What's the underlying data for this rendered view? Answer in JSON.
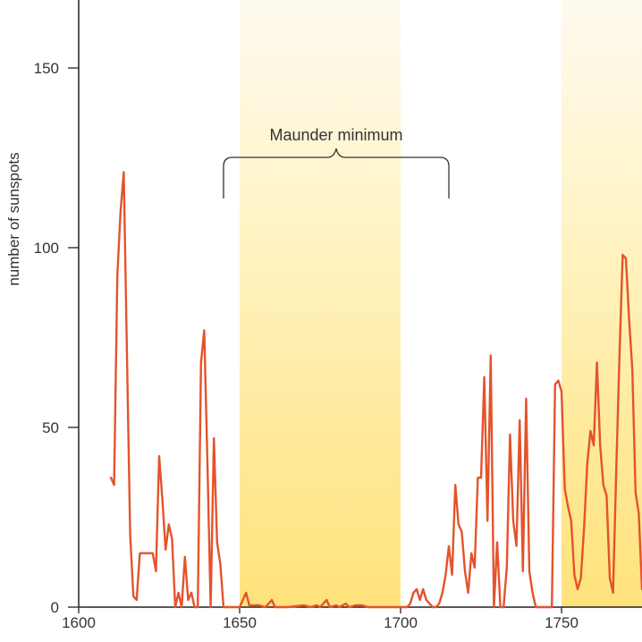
{
  "chart_data": {
    "type": "line",
    "title": "",
    "xlabel": "",
    "ylabel": "number of sunspots",
    "xlim": [
      1600,
      1775
    ],
    "ylim": [
      0,
      170
    ],
    "x_ticks": [
      "1600",
      "1650",
      "1700",
      "1750"
    ],
    "y_ticks": [
      "0",
      "50",
      "100",
      "150"
    ],
    "grid": false,
    "legend": "none",
    "annotation": {
      "text": "Maunder minimum",
      "from_year": 1645,
      "to_year": 1715
    },
    "shaded_bands": [
      {
        "from_year": 1650,
        "to_year": 1700
      },
      {
        "from_year": 1750,
        "to_year": 1775
      }
    ],
    "colors": {
      "line": "#e4532b",
      "band_top": "#fffaf0",
      "band_bottom": "#ffe27a",
      "axis": "#222222",
      "text": "#333333"
    },
    "series": [
      {
        "points": [
          [
            1610,
            36
          ],
          [
            1611,
            34
          ],
          [
            1612,
            92
          ],
          [
            1613,
            110
          ],
          [
            1614,
            121
          ],
          [
            1615,
            70
          ],
          [
            1616,
            20
          ],
          [
            1617,
            3
          ],
          [
            1618,
            2
          ],
          [
            1619,
            15
          ],
          [
            1620,
            15
          ],
          [
            1621,
            15
          ],
          [
            1622,
            15
          ],
          [
            1623,
            15
          ],
          [
            1624,
            10
          ],
          [
            1625,
            42
          ],
          [
            1626,
            30
          ],
          [
            1627,
            16
          ],
          [
            1628,
            23
          ],
          [
            1629,
            19
          ],
          [
            1630,
            0
          ],
          [
            1631,
            4
          ],
          [
            1632,
            0
          ],
          [
            1633,
            14
          ],
          [
            1634,
            2
          ],
          [
            1635,
            4
          ],
          [
            1636,
            0
          ],
          [
            1637,
            0
          ],
          [
            1638,
            68
          ],
          [
            1639,
            77
          ],
          [
            1640,
            40
          ],
          [
            1641,
            0
          ],
          [
            1642,
            47
          ],
          [
            1643,
            18
          ],
          [
            1644,
            12
          ],
          [
            1645,
            0
          ],
          [
            1650,
            0
          ],
          [
            1652,
            4
          ],
          [
            1653,
            0.5
          ],
          [
            1656,
            0.5
          ],
          [
            1658,
            0
          ],
          [
            1660,
            2
          ],
          [
            1661,
            0
          ],
          [
            1665,
            0
          ],
          [
            1670,
            0.5
          ],
          [
            1672,
            0
          ],
          [
            1674,
            0.5
          ],
          [
            1675,
            0
          ],
          [
            1677,
            2
          ],
          [
            1678,
            0
          ],
          [
            1680,
            0.5
          ],
          [
            1681,
            0
          ],
          [
            1683,
            1
          ],
          [
            1684,
            0
          ],
          [
            1686,
            0.5
          ],
          [
            1688,
            0.5
          ],
          [
            1690,
            0
          ],
          [
            1695,
            0
          ],
          [
            1700,
            0
          ],
          [
            1702,
            0
          ],
          [
            1703,
            1
          ],
          [
            1704,
            4
          ],
          [
            1705,
            5
          ],
          [
            1706,
            2
          ],
          [
            1707,
            5
          ],
          [
            1708,
            2
          ],
          [
            1709,
            1
          ],
          [
            1710,
            0
          ],
          [
            1711,
            0
          ],
          [
            1712,
            1
          ],
          [
            1713,
            4
          ],
          [
            1714,
            9
          ],
          [
            1715,
            17
          ],
          [
            1716,
            9
          ],
          [
            1717,
            34
          ],
          [
            1718,
            23
          ],
          [
            1719,
            21
          ],
          [
            1720,
            10
          ],
          [
            1721,
            4
          ],
          [
            1722,
            15
          ],
          [
            1723,
            11
          ],
          [
            1724,
            36
          ],
          [
            1725,
            36
          ],
          [
            1726,
            64
          ],
          [
            1727,
            24
          ],
          [
            1728,
            70
          ],
          [
            1729,
            0
          ],
          [
            1730,
            18
          ],
          [
            1731,
            0
          ],
          [
            1732,
            0
          ],
          [
            1733,
            11
          ],
          [
            1734,
            48
          ],
          [
            1735,
            24
          ],
          [
            1736,
            17
          ],
          [
            1737,
            52
          ],
          [
            1738,
            10
          ],
          [
            1739,
            58
          ],
          [
            1740,
            10
          ],
          [
            1741,
            4
          ],
          [
            1742,
            0
          ],
          [
            1743,
            0
          ],
          [
            1744,
            0
          ],
          [
            1745,
            0
          ],
          [
            1746,
            0
          ],
          [
            1747,
            0
          ],
          [
            1748,
            62
          ],
          [
            1749,
            63
          ],
          [
            1750,
            60
          ],
          [
            1751,
            33
          ],
          [
            1752,
            28
          ],
          [
            1753,
            24
          ],
          [
            1754,
            9
          ],
          [
            1755,
            5
          ],
          [
            1756,
            8
          ],
          [
            1757,
            22
          ],
          [
            1758,
            40
          ],
          [
            1759,
            49
          ],
          [
            1760,
            45
          ],
          [
            1761,
            68
          ],
          [
            1762,
            45
          ],
          [
            1763,
            34
          ],
          [
            1764,
            31
          ],
          [
            1765,
            8
          ],
          [
            1766,
            4
          ],
          [
            1767,
            38
          ],
          [
            1768,
            70
          ],
          [
            1769,
            98
          ],
          [
            1770,
            97
          ],
          [
            1771,
            80
          ],
          [
            1772,
            66
          ],
          [
            1773,
            32
          ],
          [
            1774,
            26
          ],
          [
            1775,
            5
          ]
        ]
      }
    ]
  }
}
